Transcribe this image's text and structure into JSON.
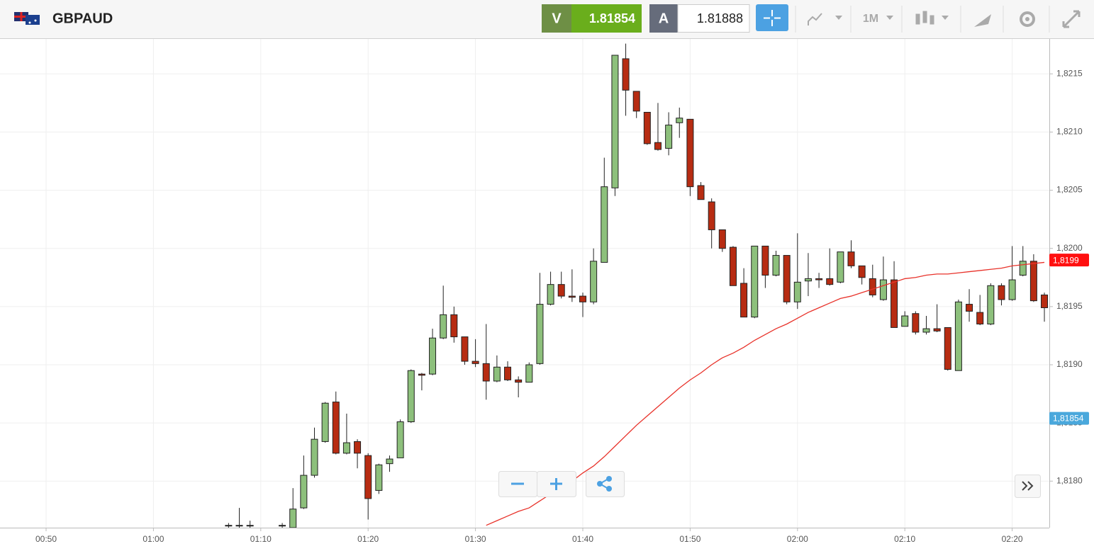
{
  "header": {
    "symbol": "GBPAUD",
    "sell": {
      "letter": "V",
      "price": "1.81854"
    },
    "buy": {
      "letter": "A",
      "price": "1.81888"
    },
    "timeframe": "1M"
  },
  "chart_data": {
    "type": "candlestick",
    "categories": [
      null,
      null,
      null,
      null,
      "00:50",
      null,
      null,
      null,
      null,
      null,
      null,
      null,
      null,
      null,
      "01:00",
      null,
      null,
      null,
      null,
      null,
      null,
      null,
      null,
      null,
      "01:10",
      null,
      null,
      null,
      null,
      null,
      null,
      null,
      null,
      null,
      "01:20",
      null,
      null,
      null,
      null,
      null,
      null,
      null,
      null,
      null,
      "01:30",
      null,
      null,
      null,
      null,
      null,
      null,
      null,
      null,
      null,
      "01:40",
      null,
      null,
      null,
      null,
      null,
      null,
      null,
      null,
      null,
      "01:50",
      null,
      null,
      null,
      null,
      null,
      null,
      null,
      null,
      null,
      "02:00",
      null,
      null,
      null,
      null,
      null,
      null,
      null,
      null,
      null,
      "02:10",
      null,
      null,
      null,
      null,
      null,
      null,
      null,
      null,
      null,
      "02:20",
      null,
      null,
      null
    ],
    "open": [
      null,
      null,
      null,
      null,
      null,
      null,
      null,
      null,
      null,
      null,
      null,
      null,
      null,
      null,
      null,
      null,
      null,
      null,
      null,
      null,
      null,
      1.81762,
      1.81762,
      1.81762,
      null,
      null,
      1.81762,
      1.8176,
      1.81777,
      1.81805,
      1.81834,
      1.81868,
      1.81824,
      1.81834,
      1.81822,
      1.81792,
      1.81815,
      1.8182,
      1.81851,
      1.81892,
      1.81892,
      1.81923,
      1.81943,
      1.81924,
      1.81903,
      1.81901,
      1.81886,
      1.81898,
      1.81887,
      1.81885,
      1.81901,
      1.81952,
      1.81969,
      1.81959,
      1.81959,
      1.81954,
      1.81988,
      1.82052,
      1.82163,
      1.82135,
      1.82117,
      1.82091,
      1.82086,
      1.82108,
      1.82111,
      1.82054,
      1.8204,
      1.82016,
      1.82001,
      1.8197,
      1.81941,
      1.82002,
      1.81977,
      1.81994,
      1.81954,
      1.81972,
      1.81974,
      1.81974,
      1.81971,
      1.81997,
      1.81985,
      1.81974,
      1.81956,
      1.81973,
      1.81933,
      1.81944,
      1.81928,
      1.81931,
      1.81932,
      1.81895,
      1.81952,
      1.81945,
      1.81935,
      1.81968,
      1.81956,
      1.81977,
      1.81989,
      1.8196
    ],
    "high": [
      null,
      null,
      null,
      null,
      null,
      null,
      null,
      null,
      null,
      null,
      null,
      null,
      null,
      null,
      null,
      null,
      null,
      null,
      null,
      null,
      null,
      1.81764,
      1.81777,
      1.81766,
      null,
      null,
      1.81764,
      1.81794,
      1.81822,
      1.81846,
      1.81868,
      1.81877,
      1.81858,
      1.81836,
      1.81824,
      1.81815,
      1.81822,
      1.81853,
      1.81896,
      1.81893,
      1.81931,
      1.81968,
      1.8195,
      1.81924,
      1.81922,
      1.81935,
      1.81908,
      1.81903,
      1.8189,
      1.81902,
      1.81979,
      1.8198,
      1.8198,
      1.81982,
      1.81962,
      1.82,
      1.82078,
      1.82166,
      1.82176,
      1.82135,
      1.82117,
      1.82125,
      1.82117,
      1.82121,
      1.82111,
      1.82057,
      1.82043,
      1.82016,
      1.82002,
      1.81983,
      1.82002,
      1.82002,
      1.81998,
      1.81994,
      1.82013,
      1.81996,
      1.81979,
      1.82,
      1.81997,
      1.82007,
      1.81985,
      1.81986,
      1.81993,
      1.81989,
      1.81946,
      1.81946,
      1.81942,
      1.81952,
      1.81932,
      1.81956,
      1.81965,
      1.8196,
      1.8197,
      1.8197,
      1.82002,
      1.82002,
      1.81995,
      1.81962
    ],
    "low": [
      null,
      null,
      null,
      null,
      null,
      null,
      null,
      null,
      null,
      null,
      null,
      null,
      null,
      null,
      null,
      null,
      null,
      null,
      null,
      null,
      null,
      1.8176,
      1.8176,
      1.8176,
      null,
      null,
      1.8176,
      1.8176,
      1.81776,
      1.81803,
      1.81833,
      1.81823,
      1.81823,
      1.81811,
      1.81767,
      1.81789,
      1.81808,
      1.8182,
      1.8185,
      1.81878,
      1.81891,
      1.81922,
      1.81919,
      1.819,
      1.81898,
      1.8187,
      1.81885,
      1.81886,
      1.81872,
      1.81885,
      1.819,
      1.81951,
      1.81957,
      1.81954,
      1.81941,
      1.81952,
      1.81988,
      1.82045,
      1.82114,
      1.82112,
      1.82089,
      1.82084,
      1.8208,
      1.82095,
      1.82045,
      1.82042,
      1.82,
      1.81997,
      1.81968,
      1.81941,
      1.8194,
      1.81966,
      1.81976,
      1.81952,
      1.81948,
      1.81959,
      1.81966,
      1.81968,
      1.8197,
      1.81983,
      1.81969,
      1.81958,
      1.81955,
      1.81932,
      1.81933,
      1.81926,
      1.81926,
      1.81928,
      1.81895,
      1.81895,
      1.81937,
      1.81934,
      1.81934,
      1.81951,
      1.81955,
      1.81976,
      1.81954,
      1.81937
    ],
    "close": [
      null,
      null,
      null,
      null,
      null,
      null,
      null,
      null,
      null,
      null,
      null,
      null,
      null,
      null,
      null,
      null,
      null,
      null,
      null,
      null,
      null,
      1.81762,
      1.81762,
      1.81762,
      null,
      null,
      1.81762,
      1.81776,
      1.81805,
      1.81836,
      1.81867,
      1.81824,
      1.81833,
      1.81824,
      1.81785,
      1.81814,
      1.81819,
      1.81851,
      1.81895,
      1.81891,
      1.81923,
      1.81943,
      1.81924,
      1.81903,
      1.81901,
      1.81886,
      1.81898,
      1.81887,
      1.81885,
      1.819,
      1.81952,
      1.81969,
      1.81959,
      1.81958,
      1.81954,
      1.81989,
      1.82053,
      1.82166,
      1.82136,
      1.82118,
      1.8209,
      1.82085,
      1.82106,
      1.82112,
      1.82053,
      1.82042,
      1.82016,
      1.82,
      1.81968,
      1.81941,
      1.82002,
      1.81977,
      1.81994,
      1.81954,
      1.81971,
      1.81974,
      1.81973,
      1.81969,
      1.81997,
      1.81985,
      1.81975,
      1.8196,
      1.81973,
      1.81932,
      1.81942,
      1.81928,
      1.81931,
      1.81929,
      1.81896,
      1.81954,
      1.81946,
      1.81935,
      1.81968,
      1.81956,
      1.81973,
      1.81989,
      1.81955,
      1.81949
    ],
    "up_color": "#8dc07c",
    "down_color": "#b72c12",
    "lines": [
      {
        "color": "#e8322a",
        "values": [
          null,
          null,
          null,
          null,
          null,
          null,
          null,
          null,
          null,
          null,
          null,
          null,
          null,
          null,
          null,
          null,
          null,
          null,
          null,
          null,
          null,
          null,
          null,
          null,
          null,
          null,
          null,
          null,
          null,
          null,
          null,
          null,
          null,
          null,
          null,
          null,
          null,
          null,
          null,
          null,
          null,
          null,
          null,
          null,
          null,
          1.81762,
          1.81766,
          1.8177,
          1.81774,
          1.81777,
          1.81783,
          1.81789,
          1.81794,
          1.818,
          1.81807,
          1.81813,
          1.81821,
          1.8183,
          1.81839,
          1.81848,
          1.81856,
          1.81864,
          1.81872,
          1.8188,
          1.81887,
          1.81893,
          1.819,
          1.81906,
          1.8191,
          1.81915,
          1.81921,
          1.81926,
          1.81931,
          1.81935,
          1.8194,
          1.81945,
          1.81949,
          1.81953,
          1.81957,
          1.81959,
          1.81962,
          1.81965,
          1.81968,
          1.81971,
          1.81974,
          1.81975,
          1.81977,
          1.81978,
          1.81978,
          1.81979,
          1.8198,
          1.81981,
          1.81982,
          1.81983,
          1.81985,
          1.81986,
          1.81987,
          1.81988
        ]
      }
    ],
    "price_markers": [
      {
        "value": 1.8199,
        "label": "1,8199",
        "color": "#ff0f0f"
      },
      {
        "value": 1.81854,
        "label": "1,81854",
        "color": "#4aa8dc"
      }
    ],
    "ylim": [
      1.8176,
      1.8218
    ],
    "yticks": [
      {
        "value": 1.818,
        "label": "1,8180"
      },
      {
        "value": 1.8185,
        "label": "1,8185"
      },
      {
        "value": 1.819,
        "label": "1,8190"
      },
      {
        "value": 1.8195,
        "label": "1,8195"
      },
      {
        "value": 1.82,
        "label": "1,8200"
      },
      {
        "value": 1.8205,
        "label": "1,8205"
      },
      {
        "value": 1.821,
        "label": "1,8210"
      },
      {
        "value": 1.8215,
        "label": "1,8215"
      }
    ],
    "grid": true
  }
}
